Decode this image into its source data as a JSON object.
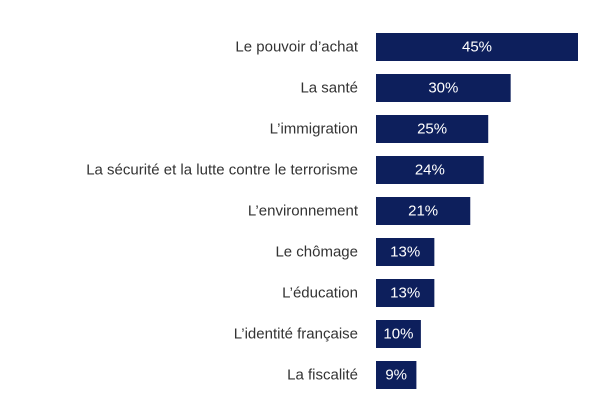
{
  "chart_data": {
    "type": "bar",
    "orientation": "horizontal",
    "categories": [
      "Le pouvoir d’achat",
      "La santé",
      "L’immigration",
      "La sécurité et la lutte contre le terrorisme",
      "L’environnement",
      "Le chômage",
      "L’éducation",
      "L’identité française",
      "La fiscalité"
    ],
    "values": [
      45,
      30,
      25,
      24,
      21,
      13,
      13,
      10,
      9
    ],
    "value_labels": [
      "45%",
      "30%",
      "25%",
      "24%",
      "21%",
      "13%",
      "13%",
      "10%",
      "9%"
    ],
    "unit": "%",
    "xlim": [
      0,
      45
    ],
    "grid": false,
    "legend": "none",
    "bar_color": "#0d1f5c",
    "value_label_color": "#ffffff",
    "category_label_color": "#333333"
  }
}
